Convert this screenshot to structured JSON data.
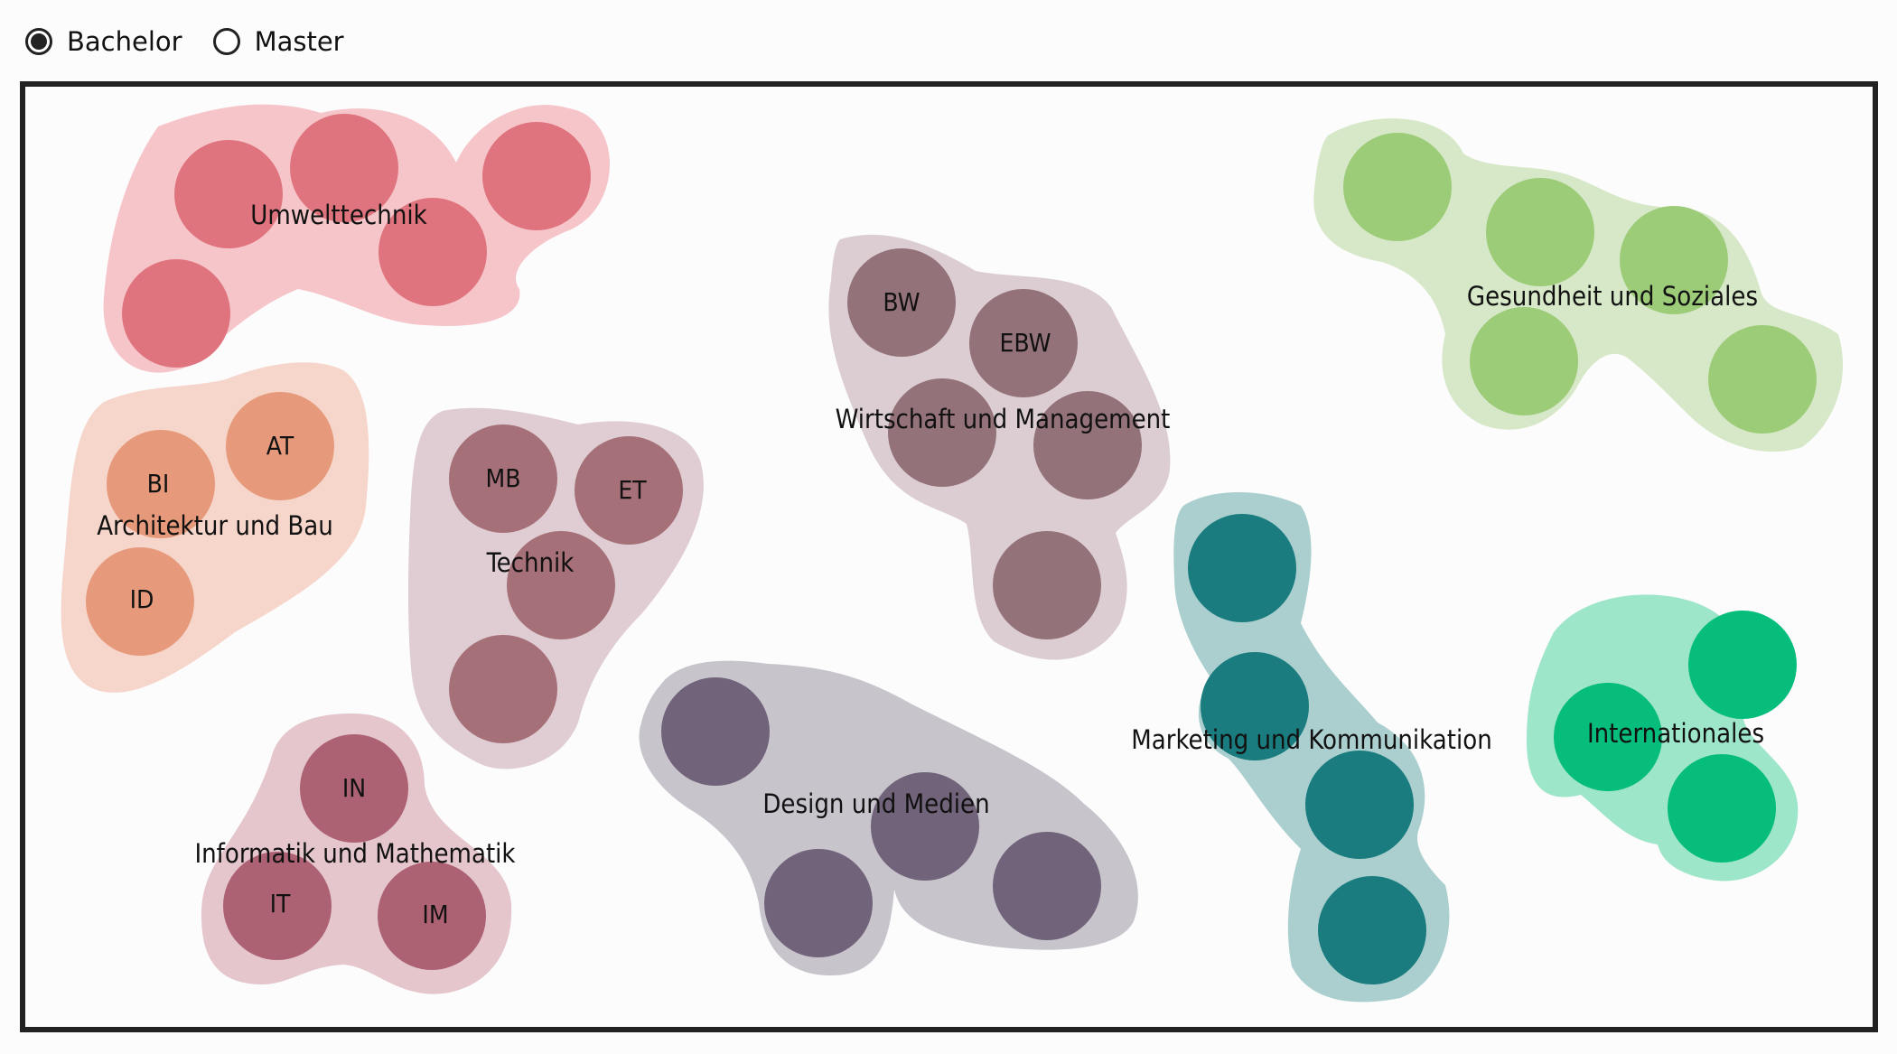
{
  "degree_toggle": {
    "options": [
      {
        "label": "Bachelor",
        "selected": true
      },
      {
        "label": "Master",
        "selected": false
      }
    ]
  },
  "clusters": [
    {
      "label": "Umwelttechnik",
      "blob_color": "#f6c5ca",
      "node_color": "#e0747e",
      "nodes": [
        {
          "label": ""
        },
        {
          "label": ""
        },
        {
          "label": ""
        },
        {
          "label": ""
        },
        {
          "label": ""
        }
      ]
    },
    {
      "label": "Architektur und Bau",
      "blob_color": "#f6d6cb",
      "node_color": "#e69a7b",
      "nodes": [
        {
          "label": "AT"
        },
        {
          "label": "BI"
        },
        {
          "label": "ID"
        }
      ]
    },
    {
      "label": "Technik",
      "blob_color": "#dfcdd3",
      "node_color": "#a67078",
      "nodes": [
        {
          "label": "MB"
        },
        {
          "label": "ET"
        },
        {
          "label": ""
        },
        {
          "label": ""
        }
      ]
    },
    {
      "label": "Informatik und Mathematik",
      "blob_color": "#e4c6cc",
      "node_color": "#ad6274",
      "nodes": [
        {
          "label": "IN"
        },
        {
          "label": "IT"
        },
        {
          "label": "IM"
        }
      ]
    },
    {
      "label": "Wirtschaft und Management",
      "blob_color": "#dccdd3",
      "node_color": "#937279",
      "nodes": [
        {
          "label": "BW"
        },
        {
          "label": "EBW"
        },
        {
          "label": ""
        },
        {
          "label": ""
        },
        {
          "label": ""
        }
      ]
    },
    {
      "label": "Design und Medien",
      "blob_color": "#c7c4cc",
      "node_color": "#716379",
      "nodes": [
        {
          "label": ""
        },
        {
          "label": ""
        },
        {
          "label": ""
        },
        {
          "label": ""
        }
      ]
    },
    {
      "label": "Gesundheit und Soziales",
      "blob_color": "#d6e8c8",
      "node_color": "#9dcc79",
      "nodes": [
        {
          "label": ""
        },
        {
          "label": ""
        },
        {
          "label": ""
        },
        {
          "label": ""
        },
        {
          "label": ""
        }
      ]
    },
    {
      "label": "Marketing und Kommunikation",
      "blob_color": "#abcfcf",
      "node_color": "#1a7c7e",
      "nodes": [
        {
          "label": ""
        },
        {
          "label": ""
        },
        {
          "label": ""
        },
        {
          "label": ""
        }
      ]
    },
    {
      "label": "Internationales",
      "blob_color": "#9ee6c9",
      "node_color": "#07bd7c",
      "nodes": [
        {
          "label": ""
        },
        {
          "label": ""
        },
        {
          "label": ""
        }
      ]
    }
  ]
}
